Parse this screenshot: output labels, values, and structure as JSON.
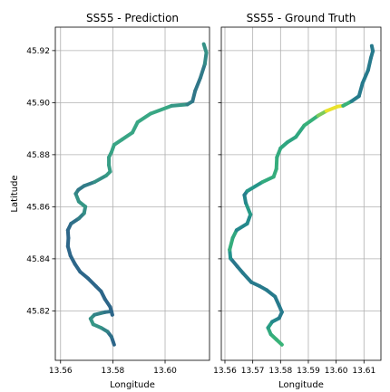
{
  "chart_data": [
    {
      "type": "line",
      "title": "SS55 - Prediction",
      "xlabel": "Longitude",
      "ylabel": "Latitude",
      "xlim": [
        13.558,
        13.617
      ],
      "ylim": [
        45.801,
        45.929
      ],
      "xticks": [
        13.56,
        13.58,
        13.6
      ],
      "xtick_labels": [
        "13.56",
        "13.58",
        "13.60"
      ],
      "yticks": [
        45.82,
        45.84,
        45.86,
        45.88,
        45.9,
        45.92
      ],
      "ytick_labels": [
        "45.82",
        "45.84",
        "45.86",
        "45.88",
        "45.90",
        "45.92"
      ],
      "grid": true,
      "series": [
        {
          "color_scale": [
            "#2c5e8a",
            "#3aad84"
          ],
          "points": [
            [
              13.5805,
              45.807,
              0.1
            ],
            [
              13.5795,
              45.81,
              0.1
            ],
            [
              13.578,
              45.812,
              0.35
            ],
            [
              13.5755,
              45.8135,
              0.6
            ],
            [
              13.5725,
              45.8148,
              0.75
            ],
            [
              13.5715,
              45.817,
              0.7
            ],
            [
              13.573,
              45.8185,
              0.55
            ],
            [
              13.577,
              45.8195,
              0.35
            ],
            [
              13.5795,
              45.8198,
              0.2
            ],
            [
              13.5798,
              45.8185,
              0.1
            ],
            [
              13.579,
              45.8215,
              0.1
            ],
            [
              13.577,
              45.8245,
              0.1
            ],
            [
              13.5755,
              45.8275,
              0.1
            ],
            [
              13.5735,
              45.8295,
              0.1
            ],
            [
              13.5705,
              45.8325,
              0.1
            ],
            [
              13.5675,
              45.835,
              0.1
            ],
            [
              13.5655,
              45.838,
              0.1
            ],
            [
              13.5638,
              45.8412,
              0.1
            ],
            [
              13.5628,
              45.8448,
              0.1
            ],
            [
              13.563,
              45.848,
              0.1
            ],
            [
              13.5628,
              45.851,
              0.1
            ],
            [
              13.564,
              45.8535,
              0.15
            ],
            [
              13.567,
              45.8555,
              0.3
            ],
            [
              13.569,
              45.8575,
              0.55
            ],
            [
              13.5695,
              45.86,
              0.7
            ],
            [
              13.567,
              45.862,
              0.75
            ],
            [
              13.5658,
              45.865,
              0.6
            ],
            [
              13.5668,
              45.8665,
              0.4
            ],
            [
              13.569,
              45.868,
              0.25
            ],
            [
              13.573,
              45.8695,
              0.5
            ],
            [
              13.5775,
              45.872,
              0.75
            ],
            [
              13.579,
              45.8735,
              0.8
            ],
            [
              13.5785,
              45.876,
              0.8
            ],
            [
              13.5785,
              45.879,
              0.8
            ],
            [
              13.5795,
              45.881,
              0.85
            ],
            [
              13.5805,
              45.8838,
              0.9
            ],
            [
              13.5835,
              45.8858,
              0.9
            ],
            [
              13.5875,
              45.8885,
              0.9
            ],
            [
              13.5895,
              45.8925,
              0.9
            ],
            [
              13.5945,
              45.8958,
              0.95
            ],
            [
              13.6025,
              45.8988,
              0.9
            ],
            [
              13.6085,
              45.8993,
              0.55
            ],
            [
              13.6105,
              45.9005,
              0.3
            ],
            [
              13.6115,
              45.9045,
              0.3
            ],
            [
              13.6135,
              45.9095,
              0.3
            ],
            [
              13.6152,
              45.9148,
              0.4
            ],
            [
              13.6158,
              45.9192,
              0.7
            ],
            [
              13.6148,
              45.9225,
              0.6
            ]
          ]
        }
      ]
    },
    {
      "type": "line",
      "title": "SS55 - Ground Truth",
      "xlabel": "Longitude",
      "ylabel": "",
      "xlim": [
        13.5587,
        13.6161
      ],
      "ylim": [
        45.801,
        45.929
      ],
      "xticks": [
        13.56,
        13.57,
        13.58,
        13.59,
        13.6,
        13.61
      ],
      "xtick_labels": [
        "13.56",
        "13.57",
        "13.58",
        "13.59",
        "13.60",
        "13.61"
      ],
      "yticks": [
        45.82,
        45.84,
        45.86,
        45.88,
        45.9,
        45.92
      ],
      "grid": true,
      "series": [
        {
          "color_scale": [
            "#31588d",
            "#21918c",
            "#3fbc73",
            "#fde725"
          ],
          "points": [
            [
              13.5805,
              45.807,
              0.6
            ],
            [
              13.5785,
              45.809,
              0.6
            ],
            [
              13.5765,
              45.811,
              0.55
            ],
            [
              13.5755,
              45.8135,
              0.5
            ],
            [
              13.577,
              45.8158,
              0.35
            ],
            [
              13.5795,
              45.8172,
              0.2
            ],
            [
              13.5805,
              45.8195,
              0.2
            ],
            [
              13.5795,
              45.822,
              0.2
            ],
            [
              13.578,
              45.8255,
              0.2
            ],
            [
              13.575,
              45.828,
              0.2
            ],
            [
              13.5725,
              45.8295,
              0.2
            ],
            [
              13.5695,
              45.831,
              0.2
            ],
            [
              13.5665,
              45.8345,
              0.2
            ],
            [
              13.5645,
              45.837,
              0.2
            ],
            [
              13.562,
              45.8402,
              0.15
            ],
            [
              13.5617,
              45.8435,
              0.5
            ],
            [
              13.5628,
              45.848,
              0.6
            ],
            [
              13.5642,
              45.851,
              0.4
            ],
            [
              13.568,
              45.8535,
              0.15
            ],
            [
              13.5692,
              45.857,
              0.45
            ],
            [
              13.5675,
              45.8615,
              0.35
            ],
            [
              13.567,
              45.8645,
              0.2
            ],
            [
              13.568,
              45.866,
              0.25
            ],
            [
              13.5735,
              45.8695,
              0.5
            ],
            [
              13.5775,
              45.8715,
              0.55
            ],
            [
              13.5785,
              45.8745,
              0.55
            ],
            [
              13.5787,
              45.879,
              0.55
            ],
            [
              13.58,
              45.8825,
              0.5
            ],
            [
              13.5825,
              45.8848,
              0.5
            ],
            [
              13.5855,
              45.8868,
              0.45
            ],
            [
              13.5885,
              45.8912,
              0.55
            ],
            [
              13.5935,
              45.895,
              0.6
            ],
            [
              13.5965,
              45.8968,
              0.95
            ],
            [
              13.6005,
              45.8985,
              0.98
            ],
            [
              13.6025,
              45.8988,
              0.95
            ],
            [
              13.6055,
              45.9005,
              0.25
            ],
            [
              13.6082,
              45.9025,
              0.2
            ],
            [
              13.6095,
              45.9075,
              0.2
            ],
            [
              13.6115,
              45.9125,
              0.2
            ],
            [
              13.6125,
              45.9172,
              0.2
            ],
            [
              13.6132,
              45.9198,
              0.2
            ],
            [
              13.6128,
              45.9218,
              0.2
            ]
          ]
        }
      ]
    }
  ]
}
